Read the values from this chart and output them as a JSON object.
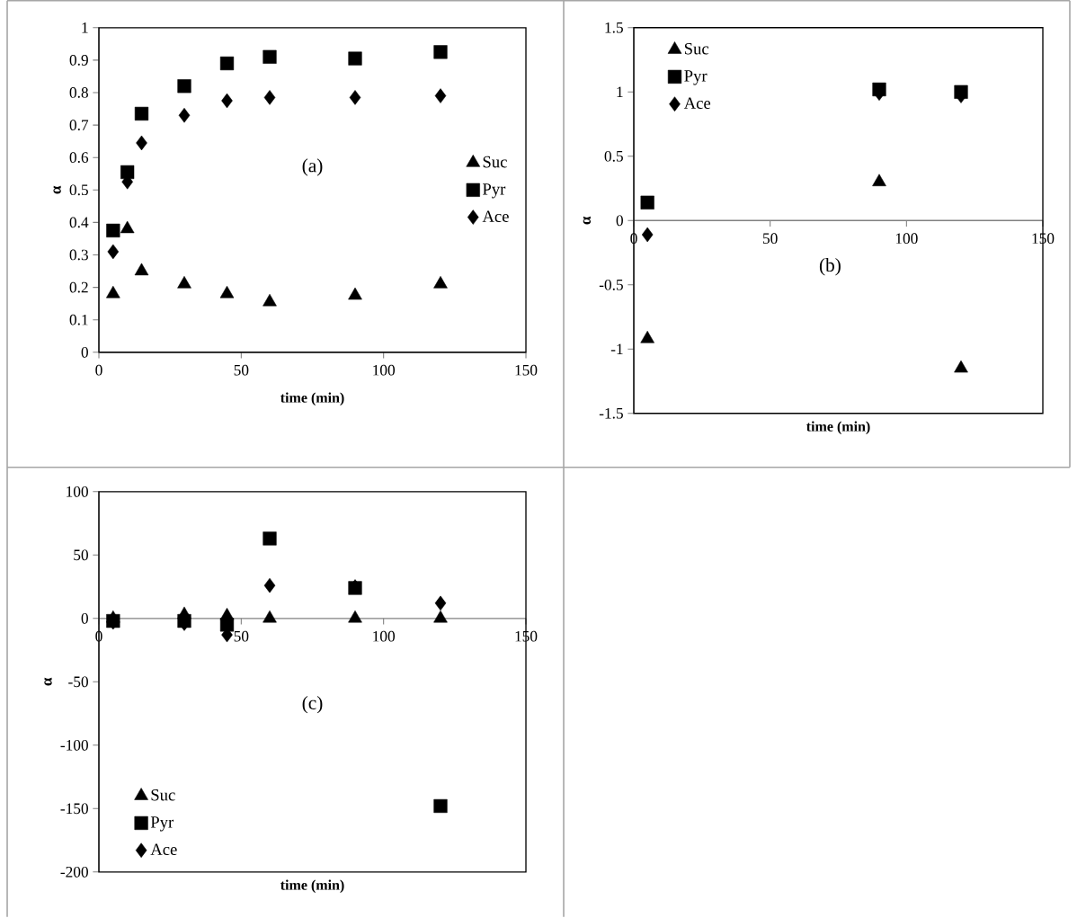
{
  "chart_data": [
    {
      "type": "scatter",
      "xlabel": "time (min)",
      "ylabel": "α",
      "annotations": [
        "(a)"
      ],
      "x": [
        5,
        10,
        15,
        30,
        45,
        60,
        90,
        120
      ],
      "series": [
        {
          "name": "Suc",
          "color": "#000000",
          "marker": "triangle",
          "values": [
            0.18,
            0.38,
            0.25,
            0.21,
            0.18,
            0.155,
            0.175,
            0.21
          ]
        },
        {
          "name": "Pyr",
          "color": "#000000",
          "marker": "square",
          "values": [
            0.375,
            0.555,
            0.735,
            0.82,
            0.89,
            0.91,
            0.905,
            0.925
          ]
        },
        {
          "name": "Ace",
          "color": "#000000",
          "marker": "diamond",
          "values": [
            0.31,
            0.525,
            0.645,
            0.73,
            0.775,
            0.785,
            0.785,
            0.79
          ]
        }
      ],
      "xlim": [
        0,
        150
      ],
      "xticks": [
        0,
        50,
        100,
        150
      ],
      "ylim": [
        0,
        1
      ],
      "yticks": [
        0,
        0.1,
        0.2,
        0.3,
        0.4,
        0.5,
        0.6,
        0.7,
        0.8,
        0.9,
        1
      ],
      "legend": "right"
    },
    {
      "type": "scatter",
      "xlabel": "time (min)",
      "ylabel": "α",
      "annotations": [
        "(b)"
      ],
      "x": [
        5,
        90,
        120
      ],
      "series": [
        {
          "name": "Suc",
          "color": "#000000",
          "marker": "triangle",
          "values": [
            -0.92,
            0.3,
            -1.15
          ]
        },
        {
          "name": "Pyr",
          "color": "#000000",
          "marker": "square",
          "values": [
            0.14,
            1.02,
            1.0
          ]
        },
        {
          "name": "Ace",
          "color": "#000000",
          "marker": "diamond",
          "values": [
            -0.11,
            0.99,
            0.97
          ]
        }
      ],
      "xlim": [
        0,
        150
      ],
      "xticks": [
        0,
        50,
        100,
        150
      ],
      "ylim": [
        -1.5,
        1.5
      ],
      "yticks": [
        -1.5,
        -1,
        -0.5,
        0,
        0.5,
        1,
        1.5
      ],
      "legend": "top left"
    },
    {
      "type": "scatter",
      "xlabel": "time (min)",
      "ylabel": "α",
      "annotations": [
        "(c)"
      ],
      "x": [
        5,
        30,
        45,
        60,
        90,
        120
      ],
      "series": [
        {
          "name": "Suc",
          "color": "#000000",
          "marker": "triangle",
          "values": [
            0,
            3,
            2,
            0,
            0,
            0
          ]
        },
        {
          "name": "Pyr",
          "color": "#000000",
          "marker": "square",
          "values": [
            -2,
            -2,
            -5,
            63,
            24,
            -148
          ]
        },
        {
          "name": "Ace",
          "color": "#000000",
          "marker": "diamond",
          "values": [
            -3,
            -4,
            -13,
            26,
            25,
            12
          ]
        }
      ],
      "xlim": [
        0,
        150
      ],
      "xticks": [
        0,
        50,
        100,
        150
      ],
      "ylim": [
        -200,
        100
      ],
      "yticks": [
        -200,
        -150,
        -100,
        -50,
        0,
        50,
        100
      ],
      "legend": "bottom left"
    }
  ]
}
